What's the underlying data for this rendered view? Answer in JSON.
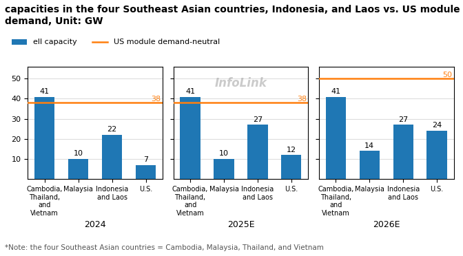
{
  "title": "capacities in the four Southeast Asian countries, Indonesia, and Laos vs. US module demand, Unit: GW",
  "annotations": [
    "*Note: the four Southeast Asian countries = Cambodia, Malaysia, Thailand, and Vietnam"
  ],
  "legend": "upper left",
  "chart_data": [
    {
      "type": "bar",
      "xlabel": "2024",
      "categories": [
        "Cambodia, Thailand, and Vietnam",
        "Malaysia",
        "Indonesia and Laos",
        "U.S."
      ],
      "series": [
        {
          "name": "ell capacity",
          "type": "bar",
          "color": "#1f77b4",
          "values": [
            41,
            10,
            22,
            7
          ],
          "data_labels": true
        },
        {
          "name": "US module demand-neutral",
          "type": "hline",
          "color": "#ff7f0e",
          "value": 38,
          "data_labels": true
        }
      ],
      "ylim": [
        0,
        56
      ],
      "yticks": [
        10,
        20,
        30,
        40,
        50
      ],
      "grid": "y"
    },
    {
      "type": "bar",
      "xlabel": "2025E",
      "categories": [
        "Cambodia, Thailand, and Vietnam",
        "Malaysia",
        "Indonesia and Laos",
        "U.S."
      ],
      "series": [
        {
          "name": "ell capacity",
          "type": "bar",
          "color": "#1f77b4",
          "values": [
            41,
            10,
            27,
            12
          ],
          "data_labels": true
        },
        {
          "name": "US module demand-neutral",
          "type": "hline",
          "color": "#ff7f0e",
          "value": 38,
          "data_labels": true
        }
      ],
      "ylim": [
        0,
        56
      ],
      "yticks": [
        10,
        20,
        30,
        40,
        50
      ],
      "grid": "y",
      "tick_labels": "x",
      "annotations": [
        "InfoLink"
      ]
    },
    {
      "type": "bar",
      "xlabel": "2026E",
      "categories": [
        "Cambodia, Thailand, and Vietnam",
        "Malaysia",
        "Indonesia and Laos",
        "U.S."
      ],
      "series": [
        {
          "name": "ell capacity",
          "type": "bar",
          "color": "#1f77b4",
          "values": [
            41,
            14,
            27,
            24
          ],
          "data_labels": true
        },
        {
          "name": "US module demand-neutral",
          "type": "hline",
          "color": "#ff7f0e",
          "value": 50,
          "data_labels": true
        }
      ],
      "ylim": [
        0,
        56
      ],
      "yticks": [
        10,
        20,
        30,
        40,
        50
      ],
      "grid": "y",
      "tick_labels": "x"
    }
  ]
}
